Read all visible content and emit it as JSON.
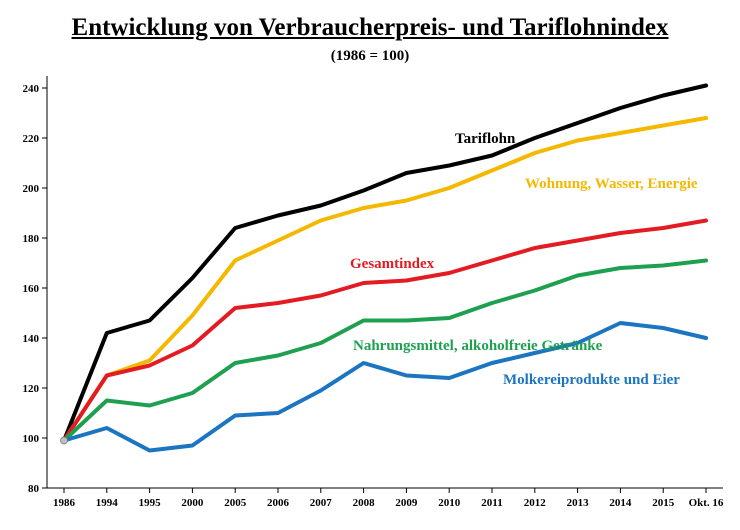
{
  "chart_data": {
    "type": "line",
    "title": "Entwicklung von Verbraucherpreis- und Tariflohnindex",
    "subtitle": "(1986 = 100)",
    "xlabel": "",
    "ylabel": "",
    "categories": [
      "1986",
      "1994",
      "1995",
      "2000",
      "2005",
      "2006",
      "2007",
      "2008",
      "2009",
      "2010",
      "2011",
      "2012",
      "2013",
      "2014",
      "2015",
      "Okt. 16"
    ],
    "ylim": [
      80,
      240
    ],
    "yticks": [
      80,
      100,
      120,
      140,
      160,
      180,
      200,
      220,
      240
    ],
    "grid": false,
    "legend": "none",
    "series": [
      {
        "name": "Tariflohn",
        "color": "#000000",
        "values": [
          99,
          142,
          147,
          164,
          184,
          189,
          193,
          199,
          206,
          209,
          213,
          220,
          226,
          232,
          237,
          241
        ]
      },
      {
        "name": "Wohnung, Wasser, Energie",
        "color": "#f5b800",
        "values": [
          99,
          125,
          131,
          149,
          171,
          179,
          187,
          192,
          195,
          200,
          207,
          214,
          219,
          222,
          225,
          228
        ]
      },
      {
        "name": "Gesamtindex",
        "color": "#e31b23",
        "values": [
          99,
          125,
          129,
          137,
          152,
          154,
          157,
          162,
          163,
          166,
          171,
          176,
          179,
          182,
          184,
          187
        ]
      },
      {
        "name": "Nahrungsmittel, alkoholfreie Getränke",
        "color": "#1ea050",
        "values": [
          99,
          115,
          113,
          118,
          130,
          133,
          138,
          147,
          147,
          148,
          154,
          159,
          165,
          168,
          169,
          171
        ]
      },
      {
        "name": "Molkereiprodukte und Eier",
        "color": "#1b75c0",
        "values": [
          99,
          104,
          95,
          97,
          109,
          110,
          119,
          130,
          125,
          124,
          130,
          134,
          138,
          146,
          144,
          140
        ]
      }
    ]
  }
}
